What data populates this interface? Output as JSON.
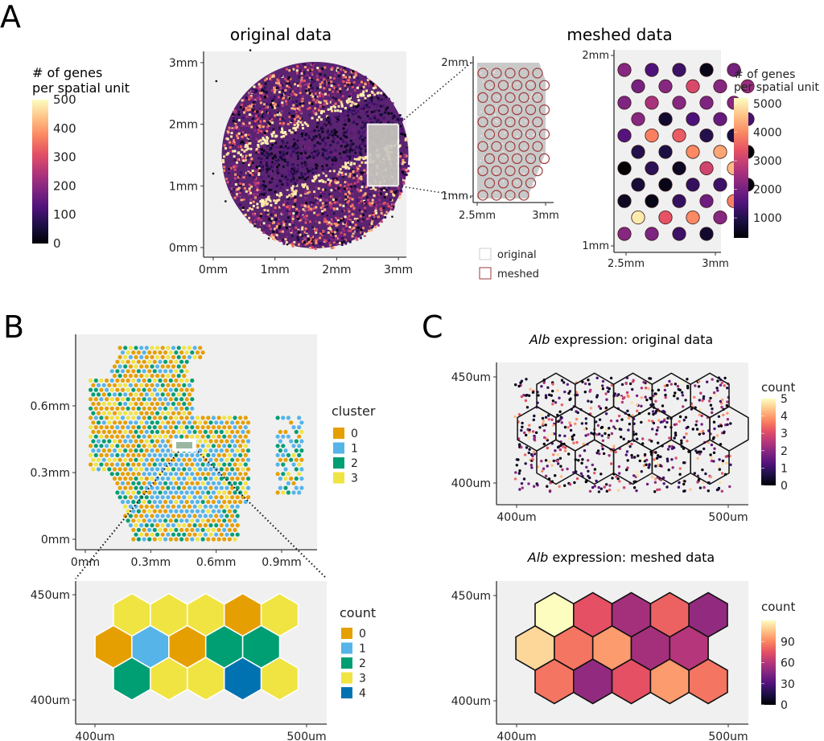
{
  "panels": {
    "A": {
      "label": "A"
    },
    "B": {
      "label": "B"
    },
    "C": {
      "label": "C"
    }
  },
  "colors": {
    "panel_bg": "#f0f0f0",
    "axis": "#333333",
    "cluster": [
      "#E69F00",
      "#56B4E9",
      "#009E73",
      "#F0E442",
      "#0072B2"
    ],
    "magma": [
      "#000004",
      "#1c1044",
      "#4f127b",
      "#812581",
      "#b5367a",
      "#e55064",
      "#fb8761",
      "#fec287",
      "#fcfdbf"
    ],
    "meshed_outline": "#9e3a3a",
    "original_outline": "#cccccc"
  },
  "chart_data": [
    {
      "id": "A-original",
      "type": "scatter",
      "title": "original data",
      "xlabel": "",
      "ylabel": "",
      "x_ticks": [
        "0mm",
        "1mm",
        "2mm",
        "3mm"
      ],
      "y_ticks": [
        "0mm",
        "1mm",
        "2mm",
        "3mm"
      ],
      "xlim": [
        0,
        3
      ],
      "ylim": [
        0,
        3
      ],
      "colorbar": {
        "title": "# of genes\nper spatial unit",
        "title_lines": [
          "# of genes",
          "per spatial unit"
        ],
        "ticks": [
          "0",
          "100",
          "200",
          "300",
          "400",
          "500"
        ],
        "range": [
          0,
          500
        ],
        "palette": "magma"
      },
      "description": "circular tissue section of spots coloured by gene count; zoom box spans x 2.5–3mm, y 1–2mm",
      "zoom_box": {
        "x": [
          2.5,
          3.0
        ],
        "y": [
          1.0,
          2.0
        ]
      }
    },
    {
      "id": "A-overlay",
      "type": "scatter",
      "title": "",
      "x_ticks": [
        "2.5mm",
        "3mm"
      ],
      "y_ticks": [
        "1mm",
        "2mm"
      ],
      "xlim": [
        2.5,
        3.0
      ],
      "ylim": [
        1.0,
        2.0
      ],
      "legend": {
        "entries": [
          "original",
          "meshed"
        ],
        "placement": "bottom"
      },
      "mesh_rows": [
        5,
        5,
        5,
        5,
        5,
        5,
        5,
        5,
        5,
        4,
        4
      ]
    },
    {
      "id": "A-meshed",
      "type": "scatter",
      "title": "meshed data",
      "x_ticks": [
        "2.5mm",
        "3mm"
      ],
      "y_ticks": [
        "1mm",
        "2mm"
      ],
      "xlim": [
        2.5,
        3.0
      ],
      "ylim": [
        1.0,
        2.0
      ],
      "colorbar": {
        "title_lines": [
          "# of genes",
          "per spatial unit"
        ],
        "ticks": [
          "1000",
          "2000",
          "3000",
          "4000",
          "5000"
        ],
        "range": [
          300,
          5200
        ],
        "palette": "magma"
      },
      "rows": [
        {
          "offset": false,
          "values": [
            2200,
            1500,
            1300,
            500,
            2000
          ]
        },
        {
          "offset": true,
          "values": [
            2000,
            2200,
            3200,
            2200,
            2400
          ]
        },
        {
          "offset": false,
          "values": [
            2100,
            2600,
            2200,
            2100,
            2200
          ]
        },
        {
          "offset": true,
          "values": [
            2200,
            700,
            1500,
            1800,
            1400
          ]
        },
        {
          "offset": false,
          "values": [
            1600,
            3900,
            3500,
            1000,
            900
          ]
        },
        {
          "offset": true,
          "values": [
            1000,
            900,
            4000,
            4300,
            400
          ]
        },
        {
          "offset": false,
          "values": [
            300,
            1100,
            600,
            3100,
            4500
          ]
        },
        {
          "offset": true,
          "values": [
            800,
            500,
            1200,
            1300,
            400
          ]
        },
        {
          "offset": false,
          "values": [
            600,
            500,
            1200,
            1900,
            3900
          ]
        },
        {
          "offset": true,
          "values": [
            5000,
            3400,
            4000,
            2200
          ]
        },
        {
          "offset": false,
          "values": [
            2200,
            2100,
            1300,
            700
          ]
        }
      ]
    },
    {
      "id": "B-cluster",
      "type": "scatter",
      "title": "",
      "x_ticks": [
        "0mm",
        "0.3mm",
        "0.6mm",
        "0.9mm"
      ],
      "y_ticks": [
        "0mm",
        "0.3mm",
        "0.6mm"
      ],
      "xlim": [
        -0.05,
        1.05
      ],
      "ylim": [
        -0.05,
        0.9
      ],
      "legend": {
        "title": "cluster",
        "entries": [
          "0",
          "1",
          "2",
          "3"
        ],
        "placement": "right"
      },
      "zoom_box": {
        "x": [
          0.4,
          0.5
        ],
        "y": [
          0.4,
          0.45
        ]
      }
    },
    {
      "id": "B-meshed",
      "type": "heatmap",
      "title": "",
      "x_ticks": [
        "400um",
        "500um"
      ],
      "y_ticks": [
        "400um",
        "450um"
      ],
      "xlim": [
        391,
        510
      ],
      "ylim": [
        390,
        460
      ],
      "legend": {
        "title": "count",
        "entries": [
          "0",
          "1",
          "2",
          "3",
          "4"
        ],
        "placement": "right"
      },
      "rows": [
        {
          "offset": true,
          "values": [
            3,
            3,
            3,
            0,
            3
          ]
        },
        {
          "offset": false,
          "values": [
            0,
            1,
            0,
            2,
            2
          ]
        },
        {
          "offset": true,
          "values": [
            2,
            3,
            3,
            4,
            3
          ]
        }
      ]
    },
    {
      "id": "C-original",
      "type": "scatter",
      "title_italic": "Alb",
      "title_rest": " expression: original data",
      "x_ticks": [
        "400um",
        "500um"
      ],
      "y_ticks": [
        "400um",
        "450um"
      ],
      "xlim": [
        391,
        510
      ],
      "ylim": [
        390,
        460
      ],
      "colorbar": {
        "title": "count",
        "ticks": [
          "0",
          "1",
          "2",
          "3",
          "4",
          "5"
        ],
        "range": [
          0,
          5
        ],
        "palette": "magma"
      }
    },
    {
      "id": "C-meshed",
      "type": "heatmap",
      "title_italic": "Alb",
      "title_rest": " expression: meshed data",
      "x_ticks": [
        "400um",
        "500um"
      ],
      "y_ticks": [
        "400um",
        "450um"
      ],
      "xlim": [
        391,
        510
      ],
      "ylim": [
        390,
        460
      ],
      "colorbar": {
        "title": "count",
        "ticks": [
          "0",
          "30",
          "60",
          "90"
        ],
        "range": [
          0,
          120
        ],
        "palette": "magma"
      },
      "rows": [
        {
          "offset": true,
          "values": [
            120,
            75,
            55,
            80,
            50
          ]
        },
        {
          "offset": false,
          "values": [
            110,
            85,
            95,
            55,
            60
          ]
        },
        {
          "offset": true,
          "values": [
            85,
            50,
            75,
            95,
            85
          ]
        }
      ]
    }
  ]
}
